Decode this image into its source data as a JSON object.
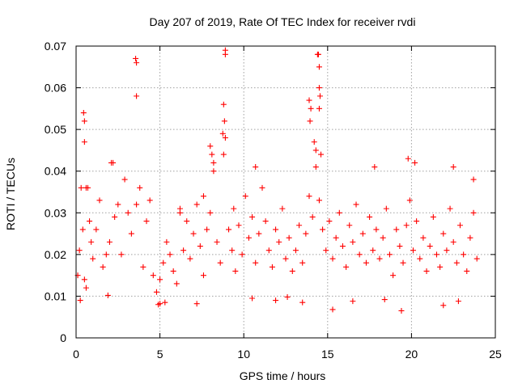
{
  "chart_data": {
    "type": "scatter",
    "title": "Day 207 of 2019, Rate Of TEC Index for receiver rvdi",
    "xlabel": "GPS time / hours",
    "ylabel": "ROTI / TECUs",
    "xlim": [
      0,
      25
    ],
    "ylim": [
      0,
      0.07
    ],
    "x_ticks": [
      0,
      5,
      10,
      15,
      20,
      25
    ],
    "y_ticks": [
      0,
      0.01,
      0.02,
      0.03,
      0.04,
      0.05,
      0.06,
      0.07
    ],
    "x_tick_labels": [
      "0",
      "5",
      "10",
      "15",
      "20",
      "25"
    ],
    "y_tick_labels": [
      "0",
      "0.01",
      "0.02",
      "0.03",
      "0.04",
      "0.05",
      "0.06",
      "0.07"
    ],
    "grid": true,
    "marker": "+",
    "color": "#ff0000",
    "series": [
      {
        "name": "ROTI",
        "points": [
          [
            0.1,
            0.015
          ],
          [
            0.2,
            0.021
          ],
          [
            0.3,
            0.036
          ],
          [
            0.4,
            0.026
          ],
          [
            0.5,
            0.014
          ],
          [
            0.6,
            0.012
          ],
          [
            0.7,
            0.036
          ],
          [
            0.8,
            0.028
          ],
          [
            0.9,
            0.023
          ],
          [
            1.0,
            0.019
          ],
          [
            1.2,
            0.026
          ],
          [
            1.4,
            0.033
          ],
          [
            1.6,
            0.017
          ],
          [
            1.8,
            0.02
          ],
          [
            2.0,
            0.023
          ],
          [
            2.1,
            0.042
          ],
          [
            2.3,
            0.029
          ],
          [
            2.5,
            0.032
          ],
          [
            2.7,
            0.02
          ],
          [
            2.9,
            0.038
          ],
          [
            3.1,
            0.03
          ],
          [
            3.3,
            0.025
          ],
          [
            3.6,
            0.032
          ],
          [
            3.8,
            0.036
          ],
          [
            4.0,
            0.017
          ],
          [
            4.2,
            0.028
          ],
          [
            4.4,
            0.033
          ],
          [
            4.6,
            0.015
          ],
          [
            4.8,
            0.011
          ],
          [
            5.0,
            0.014
          ],
          [
            5.2,
            0.018
          ],
          [
            5.4,
            0.023
          ],
          [
            5.6,
            0.02
          ],
          [
            5.8,
            0.016
          ],
          [
            6.0,
            0.013
          ],
          [
            6.2,
            0.03
          ],
          [
            6.4,
            0.021
          ],
          [
            6.6,
            0.028
          ],
          [
            6.8,
            0.019
          ],
          [
            7.0,
            0.025
          ],
          [
            7.2,
            0.032
          ],
          [
            7.4,
            0.022
          ],
          [
            7.6,
            0.015
          ],
          [
            7.8,
            0.026
          ],
          [
            8.0,
            0.03
          ],
          [
            8.2,
            0.04
          ],
          [
            8.4,
            0.023
          ],
          [
            8.6,
            0.018
          ],
          [
            8.9,
            0.048
          ],
          [
            9.1,
            0.026
          ],
          [
            9.3,
            0.021
          ],
          [
            9.5,
            0.016
          ],
          [
            9.7,
            0.027
          ],
          [
            9.9,
            0.02
          ],
          [
            10.1,
            0.034
          ],
          [
            10.3,
            0.024
          ],
          [
            10.5,
            0.029
          ],
          [
            10.7,
            0.018
          ],
          [
            10.9,
            0.025
          ],
          [
            11.1,
            0.036
          ],
          [
            11.3,
            0.028
          ],
          [
            11.5,
            0.021
          ],
          [
            11.7,
            0.017
          ],
          [
            11.9,
            0.026
          ],
          [
            12.1,
            0.023
          ],
          [
            12.3,
            0.031
          ],
          [
            12.5,
            0.019
          ],
          [
            12.7,
            0.024
          ],
          [
            12.9,
            0.016
          ],
          [
            13.1,
            0.021
          ],
          [
            13.3,
            0.027
          ],
          [
            13.5,
            0.018
          ],
          [
            13.7,
            0.025
          ],
          [
            13.9,
            0.034
          ],
          [
            14.1,
            0.029
          ],
          [
            14.3,
            0.041
          ],
          [
            14.5,
            0.033
          ],
          [
            14.7,
            0.026
          ],
          [
            14.9,
            0.021
          ],
          [
            15.1,
            0.028
          ],
          [
            15.3,
            0.019
          ],
          [
            15.5,
            0.024
          ],
          [
            15.7,
            0.03
          ],
          [
            15.9,
            0.022
          ],
          [
            16.1,
            0.017
          ],
          [
            16.3,
            0.027
          ],
          [
            16.5,
            0.023
          ],
          [
            16.7,
            0.032
          ],
          [
            16.9,
            0.02
          ],
          [
            17.1,
            0.025
          ],
          [
            17.3,
            0.018
          ],
          [
            17.5,
            0.029
          ],
          [
            17.7,
            0.021
          ],
          [
            17.9,
            0.026
          ],
          [
            18.1,
            0.019
          ],
          [
            18.3,
            0.024
          ],
          [
            18.5,
            0.031
          ],
          [
            18.7,
            0.02
          ],
          [
            18.9,
            0.015
          ],
          [
            19.1,
            0.026
          ],
          [
            19.3,
            0.022
          ],
          [
            19.5,
            0.018
          ],
          [
            19.7,
            0.027
          ],
          [
            19.9,
            0.033
          ],
          [
            20.1,
            0.021
          ],
          [
            20.3,
            0.028
          ],
          [
            20.5,
            0.019
          ],
          [
            20.7,
            0.024
          ],
          [
            20.9,
            0.016
          ],
          [
            21.1,
            0.022
          ],
          [
            21.3,
            0.029
          ],
          [
            21.5,
            0.02
          ],
          [
            21.7,
            0.017
          ],
          [
            21.9,
            0.025
          ],
          [
            22.1,
            0.021
          ],
          [
            22.3,
            0.031
          ],
          [
            22.5,
            0.023
          ],
          [
            22.7,
            0.018
          ],
          [
            22.9,
            0.027
          ],
          [
            23.1,
            0.02
          ],
          [
            23.3,
            0.016
          ],
          [
            23.5,
            0.024
          ],
          [
            23.7,
            0.03
          ],
          [
            23.9,
            0.019
          ],
          [
            0.5,
            0.052
          ],
          [
            0.5,
            0.047
          ],
          [
            0.45,
            0.054
          ],
          [
            3.55,
            0.067
          ],
          [
            3.6,
            0.066
          ],
          [
            3.6,
            0.058
          ],
          [
            8.9,
            0.068
          ],
          [
            8.9,
            0.069
          ],
          [
            8.8,
            0.056
          ],
          [
            8.85,
            0.052
          ],
          [
            8.75,
            0.049
          ],
          [
            8.8,
            0.044
          ],
          [
            8.0,
            0.046
          ],
          [
            8.1,
            0.044
          ],
          [
            8.2,
            0.042
          ],
          [
            14.4,
            0.068
          ],
          [
            14.45,
            0.068
          ],
          [
            14.5,
            0.065
          ],
          [
            14.5,
            0.06
          ],
          [
            14.55,
            0.058
          ],
          [
            14.5,
            0.055
          ],
          [
            13.9,
            0.057
          ],
          [
            14.0,
            0.055
          ],
          [
            13.95,
            0.052
          ],
          [
            14.2,
            0.047
          ],
          [
            14.3,
            0.045
          ],
          [
            14.6,
            0.044
          ],
          [
            19.8,
            0.043
          ],
          [
            20.2,
            0.042
          ],
          [
            17.8,
            0.041
          ],
          [
            22.5,
            0.041
          ],
          [
            10.7,
            0.041
          ],
          [
            23.7,
            0.038
          ],
          [
            2.2,
            0.042
          ],
          [
            0.6,
            0.036
          ],
          [
            9.4,
            0.031
          ],
          [
            6.2,
            0.031
          ],
          [
            7.6,
            0.034
          ],
          [
            4.9,
            0.008
          ],
          [
            5.0,
            0.0082
          ],
          [
            5.3,
            0.0085
          ],
          [
            7.2,
            0.0082
          ],
          [
            11.9,
            0.009
          ],
          [
            13.5,
            0.0085
          ],
          [
            15.3,
            0.0068
          ],
          [
            19.4,
            0.0065
          ],
          [
            21.9,
            0.0078
          ],
          [
            22.8,
            0.0088
          ],
          [
            1.9,
            0.0102
          ],
          [
            12.6,
            0.0098
          ],
          [
            18.4,
            0.0092
          ],
          [
            0.25,
            0.009
          ],
          [
            10.5,
            0.0095
          ],
          [
            16.5,
            0.0088
          ]
        ]
      }
    ]
  }
}
